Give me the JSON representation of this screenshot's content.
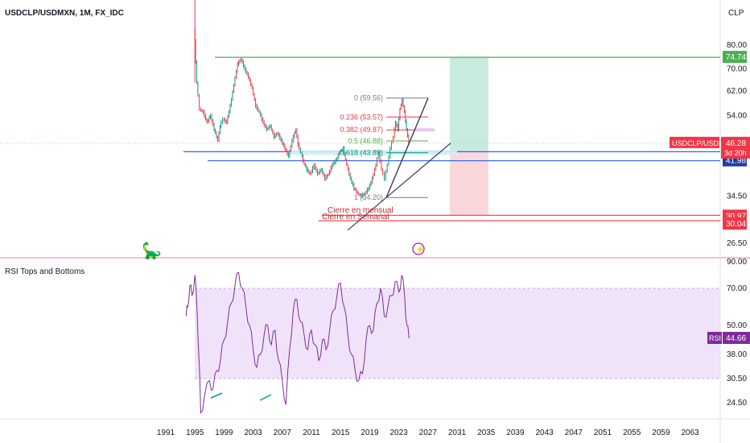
{
  "header": {
    "symbol_line": "USDCLP/USDMXN, 1M, FX_IDC",
    "currency": "CLP"
  },
  "colors": {
    "bull": "#089981",
    "bear": "#f23645",
    "blue_line": "#2962ff",
    "green_line": "#4caf50",
    "red_line": "#f23645",
    "rsi_line": "#7e2a9b",
    "rsi_band": "#e9d7f7",
    "price_label": "#f23645"
  },
  "chart_data": [
    {
      "type": "candlestick",
      "title": "USDCLP/USDMXN",
      "interval": "1M",
      "x_ticks": [
        "1991",
        "1995",
        "1999",
        "2003",
        "2007",
        "2011",
        "2015",
        "2019",
        "2023",
        "2027",
        "2031",
        "2035",
        "2039",
        "2043",
        "2047",
        "2051",
        "2055",
        "2059",
        "2063"
      ],
      "y_ticks": [
        "80.00",
        "70.00",
        "62.00",
        "54.00",
        "46.28",
        "3d 20h",
        "44.14",
        "41.98",
        "34.50",
        "30.97",
        "30.04",
        "26.50"
      ],
      "ylim": [
        24,
        92
      ],
      "scale": "log",
      "price_path": [
        [
          1995.0,
          88
        ],
        [
          1995.1,
          82
        ],
        [
          1995.4,
          65
        ],
        [
          1995.8,
          56
        ],
        [
          1996.3,
          55
        ],
        [
          1996.8,
          52
        ],
        [
          1997.3,
          54
        ],
        [
          1997.8,
          50
        ],
        [
          1998.3,
          47
        ],
        [
          1998.6,
          51
        ],
        [
          1999.0,
          53
        ],
        [
          1999.5,
          52
        ],
        [
          2000.0,
          57
        ],
        [
          2000.5,
          64
        ],
        [
          2001.0,
          72
        ],
        [
          2001.5,
          74
        ],
        [
          2002.0,
          70
        ],
        [
          2002.5,
          67
        ],
        [
          2003.0,
          63
        ],
        [
          2003.5,
          57
        ],
        [
          2004.0,
          55
        ],
        [
          2004.5,
          52
        ],
        [
          2005.0,
          50
        ],
        [
          2005.5,
          51
        ],
        [
          2006.0,
          48
        ],
        [
          2006.5,
          49
        ],
        [
          2007.0,
          47
        ],
        [
          2007.5,
          45
        ],
        [
          2008.0,
          43
        ],
        [
          2008.5,
          47
        ],
        [
          2009.0,
          50
        ],
        [
          2009.3,
          46
        ],
        [
          2009.7,
          44
        ],
        [
          2010.0,
          42
        ],
        [
          2010.5,
          40
        ],
        [
          2011.0,
          39
        ],
        [
          2011.5,
          41
        ],
        [
          2012.0,
          39
        ],
        [
          2012.5,
          40
        ],
        [
          2013.0,
          38
        ],
        [
          2013.5,
          39
        ],
        [
          2014.0,
          41
        ],
        [
          2014.5,
          42
        ],
        [
          2015.0,
          44
        ],
        [
          2015.5,
          45
        ],
        [
          2016.0,
          41
        ],
        [
          2016.5,
          38
        ],
        [
          2017.0,
          36
        ],
        [
          2017.5,
          35
        ],
        [
          2018.0,
          34.5
        ],
        [
          2018.5,
          35
        ],
        [
          2019.0,
          36
        ],
        [
          2019.5,
          38
        ],
        [
          2020.0,
          41
        ],
        [
          2020.4,
          44
        ],
        [
          2020.8,
          40
        ],
        [
          2021.2,
          38
        ],
        [
          2021.6,
          41
        ],
        [
          2022.0,
          45
        ],
        [
          2022.4,
          48
        ],
        [
          2022.7,
          52
        ],
        [
          2023.0,
          50
        ],
        [
          2023.3,
          56
        ],
        [
          2023.6,
          59
        ],
        [
          2023.9,
          55
        ],
        [
          2024.2,
          50
        ],
        [
          2024.5,
          46.3
        ]
      ],
      "fibonacci": [
        {
          "label": "0 (59.56)",
          "value": 59.56,
          "color": "#787b86"
        },
        {
          "label": "0.236 (53.57)",
          "value": 53.57,
          "color": "#f23645"
        },
        {
          "label": "0.382 (49.87)",
          "value": 49.87,
          "color": "#f23645"
        },
        {
          "label": "0.5 (46.88)",
          "value": 46.88,
          "color": "#4caf50"
        },
        {
          "label": "0.618 (43.89)",
          "value": 43.89,
          "color": "#089981"
        },
        {
          "label": "1 (34.20)",
          "value": 34.2,
          "color": "#787b86"
        }
      ],
      "horizontal_lines": [
        {
          "value": 74.74,
          "color": "#4caf50",
          "label": "74.74"
        },
        {
          "value": 44.14,
          "color": "#2962ff",
          "label": "44.14"
        },
        {
          "value": 41.98,
          "color": "#2962ff",
          "label": "41.98"
        },
        {
          "value": 30.97,
          "color": "#f23645",
          "label": "30.97"
        },
        {
          "value": 30.04,
          "color": "#f23645",
          "label": "30.04"
        }
      ],
      "position_tool": {
        "entry": 44.14,
        "target": 74.74,
        "stop": 30.97,
        "x_start": 2030.0,
        "x_end": 2035.3
      },
      "current_price": {
        "label": "USDCLP/USDMXN",
        "value": "46.28",
        "countdown": "3d 20h"
      },
      "annotations": [
        "Cierre en mensual",
        "Cierre en Semanal"
      ]
    },
    {
      "type": "line",
      "title": "RSI Tops and Bottoms",
      "y_ticks": [
        "90.00",
        "70.00",
        "50.00",
        "38.00",
        "30.50",
        "24.50"
      ],
      "band": [
        30.5,
        70
      ],
      "current": {
        "label": "RSI",
        "value": "44.66"
      },
      "rsi_path": [
        [
          1993.8,
          55
        ],
        [
          1994.0,
          60
        ],
        [
          1994.3,
          72
        ],
        [
          1994.6,
          66
        ],
        [
          1995.0,
          80
        ],
        [
          1995.3,
          58
        ],
        [
          1995.6,
          35
        ],
        [
          1995.8,
          22
        ],
        [
          1996.3,
          26
        ],
        [
          1997.0,
          30
        ],
        [
          1997.5,
          28
        ],
        [
          1998.0,
          33
        ],
        [
          1998.5,
          36
        ],
        [
          1999.0,
          44
        ],
        [
          1999.5,
          52
        ],
        [
          2000.0,
          62
        ],
        [
          2000.5,
          72
        ],
        [
          2001.0,
          82
        ],
        [
          2001.5,
          70
        ],
        [
          2002.0,
          60
        ],
        [
          2002.5,
          50
        ],
        [
          2003.0,
          40
        ],
        [
          2003.5,
          34
        ],
        [
          2004.0,
          38
        ],
        [
          2004.5,
          46
        ],
        [
          2005.0,
          50
        ],
        [
          2005.5,
          42
        ],
        [
          2006.0,
          48
        ],
        [
          2006.5,
          36
        ],
        [
          2007.0,
          30
        ],
        [
          2007.5,
          24
        ],
        [
          2008.0,
          40
        ],
        [
          2008.5,
          58
        ],
        [
          2009.0,
          64
        ],
        [
          2009.5,
          52
        ],
        [
          2010.0,
          46
        ],
        [
          2010.5,
          40
        ],
        [
          2011.0,
          48
        ],
        [
          2011.5,
          42
        ],
        [
          2012.0,
          36
        ],
        [
          2012.5,
          44
        ],
        [
          2013.0,
          40
        ],
        [
          2013.5,
          48
        ],
        [
          2014.0,
          58
        ],
        [
          2014.5,
          66
        ],
        [
          2015.0,
          74
        ],
        [
          2015.5,
          60
        ],
        [
          2016.0,
          46
        ],
        [
          2016.5,
          38
        ],
        [
          2017.0,
          33
        ],
        [
          2017.5,
          30
        ],
        [
          2018.0,
          32
        ],
        [
          2018.5,
          44
        ],
        [
          2019.0,
          50
        ],
        [
          2019.5,
          48
        ],
        [
          2020.0,
          62
        ],
        [
          2020.5,
          70
        ],
        [
          2021.0,
          55
        ],
        [
          2021.5,
          60
        ],
        [
          2022.0,
          66
        ],
        [
          2022.5,
          75
        ],
        [
          2023.0,
          68
        ],
        [
          2023.4,
          80
        ],
        [
          2023.8,
          66
        ],
        [
          2024.1,
          50
        ],
        [
          2024.4,
          44.7
        ]
      ]
    }
  ]
}
